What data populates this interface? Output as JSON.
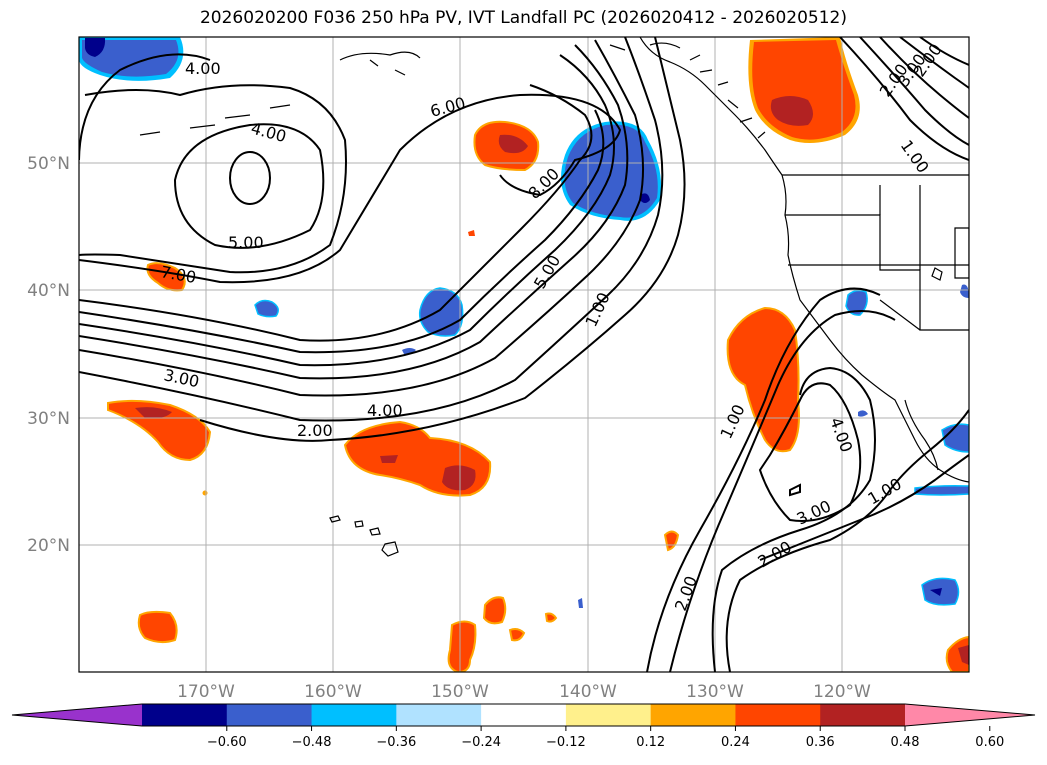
{
  "title": "2026020200 F036 250 hPa PV, IVT Landfall PC (2026020412 - 2026020512)",
  "latitude_labels": [
    "50°N",
    "40°N",
    "30°N",
    "20°N"
  ],
  "longitude_labels": [
    "170°W",
    "160°W",
    "150°W",
    "140°W",
    "130°W",
    "120°W"
  ],
  "contour_labels": [
    "4.00",
    "4.00",
    "6.00",
    "5.00",
    "8.00",
    "7.00",
    "5.00",
    "1.00",
    "3.00",
    "4.00",
    "2.00",
    "1.00",
    "4.00",
    "3.00",
    "2.00",
    "2.00",
    "1.00",
    "2.00",
    "3.00",
    "2.00",
    "1.00"
  ],
  "colorbar": {
    "ticks": [
      "−0.60",
      "−0.48",
      "−0.36",
      "−0.24",
      "−0.12",
      "0.12",
      "0.24",
      "0.36",
      "0.48",
      "0.60"
    ],
    "colors": [
      "#9932cc",
      "#00008b",
      "#3a5fcd",
      "#00bfff",
      "#b0e2ff",
      "#ffffff",
      "#fff08c",
      "#ffa500",
      "#ff4500",
      "#b22222",
      "#ff88a8"
    ]
  },
  "colors": {
    "neg_strong": "#00008b",
    "neg_mid": "#3a5fcd",
    "neg_light": "#00bfff",
    "pos_light": "#fff08c",
    "pos_mid": "#ffa500",
    "pos_strong": "#ff4500",
    "pos_dark": "#b22222",
    "grid": "#b0b0b0",
    "axis_label": "#808080"
  }
}
